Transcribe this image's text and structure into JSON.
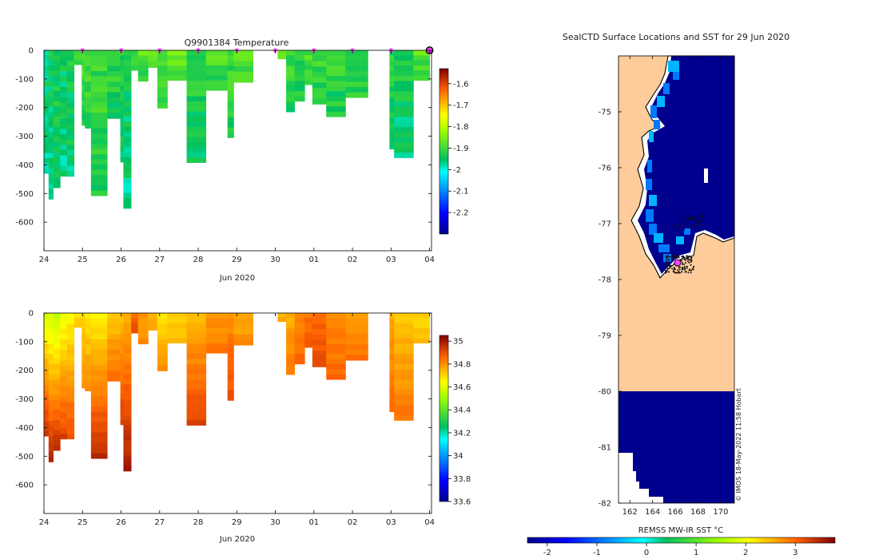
{
  "chart_data": [
    {
      "type": "heatmap",
      "title": "Q9901384  Temperature",
      "variable": "temperature",
      "x_date_ticks": [
        "24",
        "25",
        "26",
        "27",
        "28",
        "29",
        "30",
        "01",
        "02",
        "03",
        "04"
      ],
      "x_date_label": "Jun 2020",
      "xlim": [
        24,
        34.05
      ],
      "ylim": [
        -700,
        0
      ],
      "y_ticks": [
        0,
        -100,
        -200,
        -300,
        -400,
        -500,
        -600
      ],
      "y_tick_labels": [
        "0",
        "-100",
        "-200",
        "-300",
        "-400",
        "-500",
        "-600"
      ],
      "colorbar": {
        "min": -2.3,
        "max": -1.53,
        "ticks": [
          -1.6,
          -1.7,
          -1.8,
          -1.9,
          -2,
          -2.1,
          -2.2
        ],
        "tick_labels": [
          "-1.6",
          "-1.7",
          "-1.8",
          "-1.9",
          "-2",
          "-2.1",
          "-2.2"
        ],
        "colormap": "jet"
      },
      "surface_markers_day": [
        25,
        26,
        27,
        28,
        29,
        30,
        31,
        32,
        33,
        34
      ],
      "profiles": [
        {
          "t": 24.0,
          "w": 0.12,
          "depth": 430,
          "value": -1.95
        },
        {
          "t": 24.12,
          "w": 0.12,
          "depth": 520,
          "value": -1.94
        },
        {
          "t": 24.24,
          "w": 0.18,
          "depth": 480,
          "value": -1.93
        },
        {
          "t": 24.42,
          "w": 0.18,
          "depth": 440,
          "value": -1.94
        },
        {
          "t": 24.6,
          "w": 0.18,
          "depth": 440,
          "value": -1.93
        },
        {
          "t": 24.78,
          "w": 0.2,
          "depth": 50,
          "value": -1.9
        },
        {
          "t": 24.98,
          "w": 0.08,
          "depth": 262,
          "value": -1.9
        },
        {
          "t": 25.06,
          "w": 0.16,
          "depth": 272,
          "value": -1.89
        },
        {
          "t": 25.22,
          "w": 0.42,
          "depth": 508,
          "value": -1.9
        },
        {
          "t": 25.64,
          "w": 0.34,
          "depth": 238,
          "value": -1.91
        },
        {
          "t": 25.98,
          "w": 0.08,
          "depth": 390,
          "value": -1.92
        },
        {
          "t": 26.06,
          "w": 0.2,
          "depth": 552,
          "value": -1.94
        },
        {
          "t": 26.26,
          "w": 0.18,
          "depth": 70,
          "value": -1.9
        },
        {
          "t": 26.44,
          "w": 0.26,
          "depth": 108,
          "value": -1.88
        },
        {
          "t": 26.7,
          "w": 0.24,
          "depth": 60,
          "value": -1.88
        },
        {
          "t": 26.94,
          "w": 0.26,
          "depth": 202,
          "value": -1.89
        },
        {
          "t": 27.2,
          "w": 0.5,
          "depth": 105,
          "value": -1.87
        },
        {
          "t": 27.7,
          "w": 0.5,
          "depth": 392,
          "value": -1.92
        },
        {
          "t": 28.2,
          "w": 0.56,
          "depth": 140,
          "value": -1.89
        },
        {
          "t": 28.76,
          "w": 0.16,
          "depth": 305,
          "value": -1.9
        },
        {
          "t": 28.92,
          "w": 0.5,
          "depth": 112,
          "value": -1.88
        },
        {
          "t": 30.06,
          "w": 0.22,
          "depth": 30,
          "value": -1.87
        },
        {
          "t": 30.28,
          "w": 0.22,
          "depth": 215,
          "value": -1.9
        },
        {
          "t": 30.5,
          "w": 0.26,
          "depth": 178,
          "value": -1.91
        },
        {
          "t": 30.76,
          "w": 0.2,
          "depth": 120,
          "value": -1.89
        },
        {
          "t": 30.96,
          "w": 0.36,
          "depth": 188,
          "value": -1.9
        },
        {
          "t": 31.32,
          "w": 0.5,
          "depth": 232,
          "value": -1.91
        },
        {
          "t": 31.82,
          "w": 0.58,
          "depth": 165,
          "value": -1.9
        },
        {
          "t": 32.96,
          "w": 0.12,
          "depth": 345,
          "value": -1.92
        },
        {
          "t": 33.08,
          "w": 0.5,
          "depth": 375,
          "value": -1.93
        },
        {
          "t": 33.58,
          "w": 0.42,
          "depth": 105,
          "value": -1.88
        }
      ]
    },
    {
      "type": "heatmap",
      "title": "",
      "variable": "salinity",
      "x_date_ticks": [
        "24",
        "25",
        "26",
        "27",
        "28",
        "29",
        "30",
        "01",
        "02",
        "03",
        "04"
      ],
      "x_date_label": "Jun 2020",
      "xlim": [
        24,
        34.05
      ],
      "ylim": [
        -700,
        0
      ],
      "y_ticks": [
        0,
        -100,
        -200,
        -300,
        -400,
        -500,
        -600
      ],
      "y_tick_labels": [
        "0",
        "-100",
        "-200",
        "-300",
        "-400",
        "-500",
        "-600"
      ],
      "colorbar": {
        "min": 33.6,
        "max": 35.05,
        "ticks": [
          35,
          34.8,
          34.6,
          34.4,
          34.2,
          34,
          33.8,
          33.6
        ],
        "tick_labels": [
          "35",
          "34.8",
          "34.6",
          "34.4",
          "34.2",
          "34",
          "33.8",
          "33.6"
        ],
        "colormap": "jet"
      },
      "profiles": [
        {
          "t": 24.0,
          "w": 0.12,
          "depth": 430,
          "surface": 34.6,
          "bottom": 34.95
        },
        {
          "t": 24.12,
          "w": 0.12,
          "depth": 520,
          "surface": 34.58,
          "bottom": 34.98
        },
        {
          "t": 24.24,
          "w": 0.18,
          "depth": 480,
          "surface": 34.56,
          "bottom": 34.96
        },
        {
          "t": 24.42,
          "w": 0.18,
          "depth": 440,
          "surface": 34.62,
          "bottom": 34.92
        },
        {
          "t": 24.6,
          "w": 0.18,
          "depth": 440,
          "surface": 34.65,
          "bottom": 34.9
        },
        {
          "t": 24.78,
          "w": 0.2,
          "depth": 50,
          "surface": 34.68,
          "bottom": 34.72
        },
        {
          "t": 24.98,
          "w": 0.08,
          "depth": 262,
          "surface": 34.7,
          "bottom": 34.8
        },
        {
          "t": 25.06,
          "w": 0.16,
          "depth": 272,
          "surface": 34.68,
          "bottom": 34.82
        },
        {
          "t": 25.22,
          "w": 0.42,
          "depth": 508,
          "surface": 34.66,
          "bottom": 34.97
        },
        {
          "t": 25.64,
          "w": 0.34,
          "depth": 238,
          "surface": 34.72,
          "bottom": 34.86
        },
        {
          "t": 25.98,
          "w": 0.08,
          "depth": 390,
          "surface": 34.74,
          "bottom": 34.93
        },
        {
          "t": 26.06,
          "w": 0.2,
          "depth": 552,
          "surface": 34.75,
          "bottom": 35.0
        },
        {
          "t": 26.26,
          "w": 0.18,
          "depth": 70,
          "surface": 34.86,
          "bottom": 34.9
        },
        {
          "t": 26.44,
          "w": 0.26,
          "depth": 108,
          "surface": 34.78,
          "bottom": 34.82
        },
        {
          "t": 26.7,
          "w": 0.24,
          "depth": 60,
          "surface": 34.74,
          "bottom": 34.76
        },
        {
          "t": 26.94,
          "w": 0.26,
          "depth": 202,
          "surface": 34.68,
          "bottom": 34.8
        },
        {
          "t": 27.2,
          "w": 0.5,
          "depth": 105,
          "surface": 34.7,
          "bottom": 34.74
        },
        {
          "t": 27.7,
          "w": 0.5,
          "depth": 392,
          "surface": 34.74,
          "bottom": 34.92
        },
        {
          "t": 28.2,
          "w": 0.56,
          "depth": 140,
          "surface": 34.78,
          "bottom": 34.84
        },
        {
          "t": 28.76,
          "w": 0.16,
          "depth": 305,
          "surface": 34.8,
          "bottom": 34.9
        },
        {
          "t": 28.92,
          "w": 0.5,
          "depth": 112,
          "surface": 34.76,
          "bottom": 34.8
        },
        {
          "t": 30.06,
          "w": 0.22,
          "depth": 30,
          "surface": 34.74,
          "bottom": 34.76
        },
        {
          "t": 30.28,
          "w": 0.22,
          "depth": 215,
          "surface": 34.76,
          "bottom": 34.84
        },
        {
          "t": 30.5,
          "w": 0.26,
          "depth": 178,
          "surface": 34.82,
          "bottom": 34.86
        },
        {
          "t": 30.76,
          "w": 0.2,
          "depth": 120,
          "surface": 34.84,
          "bottom": 34.88
        },
        {
          "t": 30.96,
          "w": 0.36,
          "depth": 188,
          "surface": 34.86,
          "bottom": 34.9
        },
        {
          "t": 31.32,
          "w": 0.5,
          "depth": 232,
          "surface": 34.8,
          "bottom": 34.86
        },
        {
          "t": 31.82,
          "w": 0.58,
          "depth": 165,
          "surface": 34.8,
          "bottom": 34.84
        },
        {
          "t": 32.96,
          "w": 0.12,
          "depth": 345,
          "surface": 34.76,
          "bottom": 34.86
        },
        {
          "t": 33.08,
          "w": 0.5,
          "depth": 375,
          "surface": 34.72,
          "bottom": 34.84
        },
        {
          "t": 33.58,
          "w": 0.42,
          "depth": 105,
          "surface": 34.7,
          "bottom": 34.74
        }
      ]
    },
    {
      "type": "map",
      "title": "SealCTD Surface Locations and SST for 29 Jun 2020",
      "x_ticks": [
        "162",
        "164",
        "166",
        "168",
        "170"
      ],
      "x_tick_values": [
        162,
        164,
        166,
        168,
        170
      ],
      "y_ticks": [
        "-75",
        "-76",
        "-77",
        "-78",
        "-79",
        "-80",
        "-81",
        "-82"
      ],
      "y_tick_values": [
        -75,
        -76,
        -77,
        -78,
        -79,
        -80,
        -81,
        -82
      ],
      "lon_range": [
        161,
        171.2
      ],
      "lat_range": [
        -82,
        -74
      ],
      "credit": "© IMOS 18-May-2022 11:58 Hobart",
      "colorbar": {
        "label": "REMSS MW-IR SST °C",
        "min": -2.4,
        "max": 3.8,
        "ticks": [
          "-2",
          "-1",
          "0",
          "1",
          "2",
          "3"
        ],
        "tick_values": [
          -2,
          -1,
          0,
          1,
          2,
          3
        ],
        "colormap": "jet"
      },
      "colors": {
        "land": "#fdcc9a",
        "sea_cold": "#00008f",
        "sea_shelf": "#0078ff",
        "sea_edge": "#00b4ff",
        "seal_track": "#111111",
        "seal_latest": "#ff40ff"
      },
      "sea_region_lower_lat_top": -80,
      "latest_location": {
        "lon": 166.2,
        "lat": -77.7
      }
    }
  ]
}
